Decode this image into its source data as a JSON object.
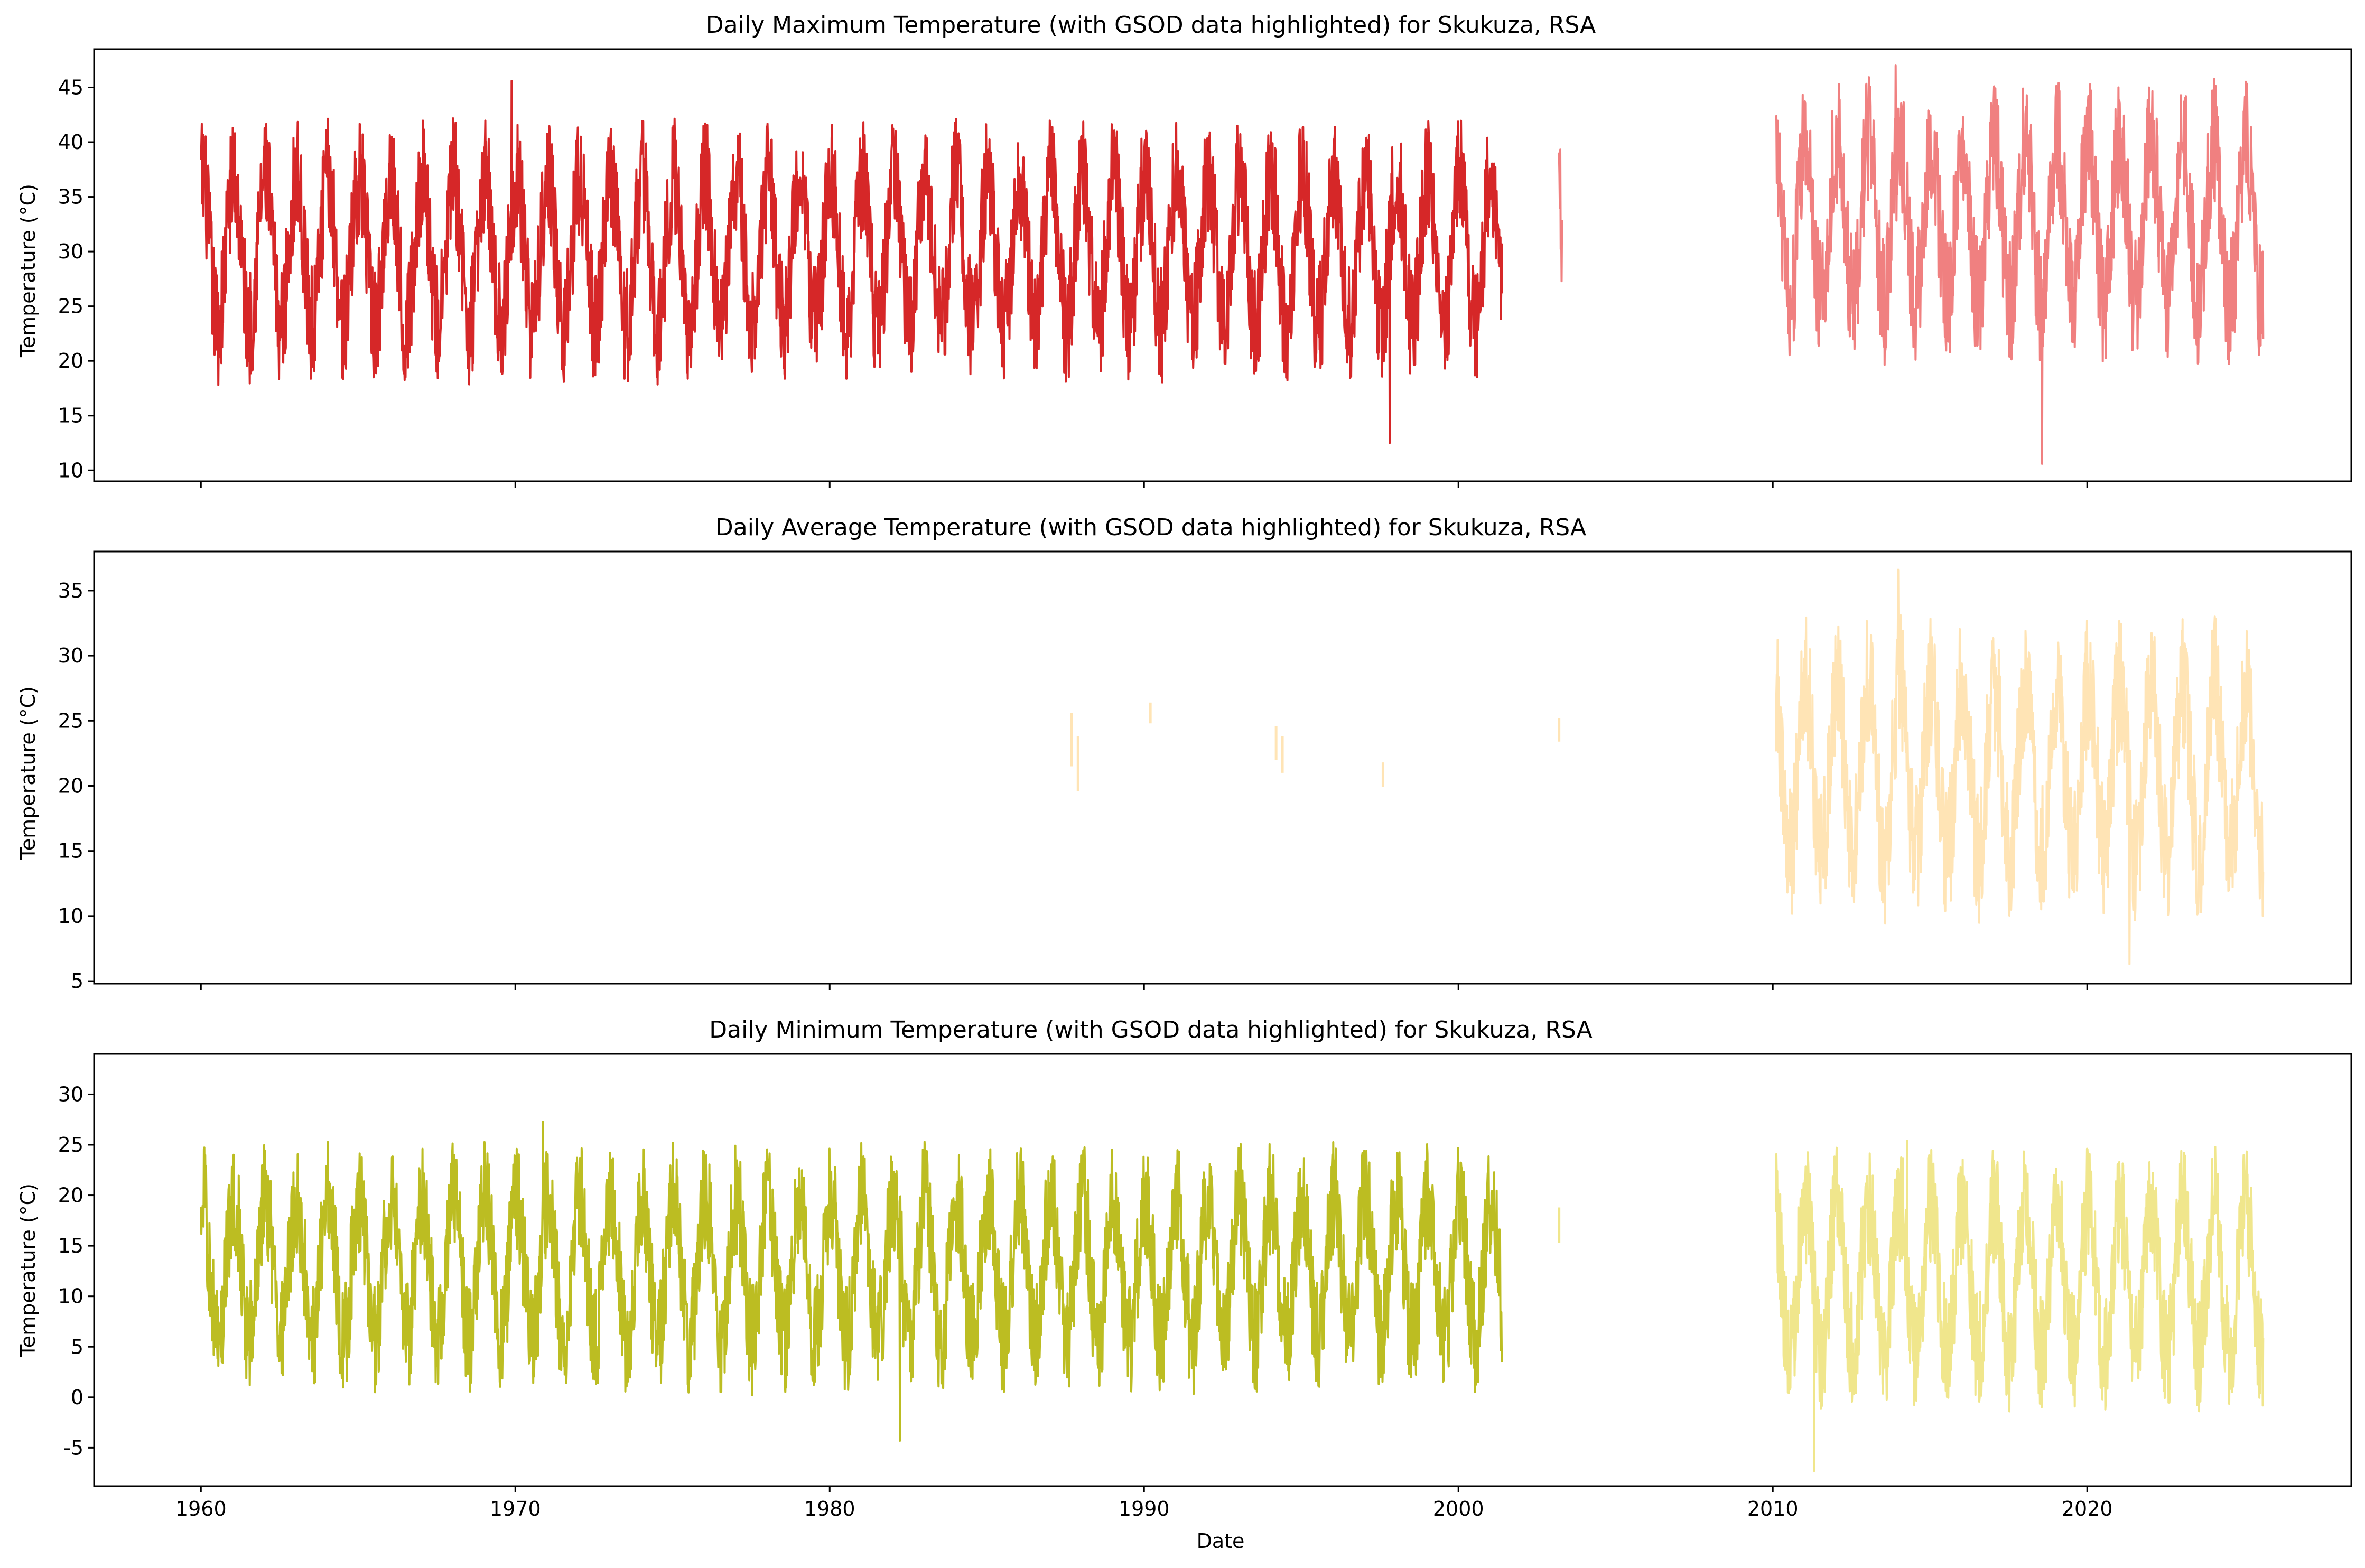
{
  "figure": {
    "xlabel": "Date"
  },
  "chart_data": [
    {
      "type": "line",
      "title": "Daily Maximum Temperature (with GSOD data highlighted) for Skukuza, RSA",
      "xlabel": "",
      "ylabel": "Temperature (°C)",
      "xlim": [
        1956.6,
        2028.4
      ],
      "ylim": [
        9,
        48.5
      ],
      "yticks": [
        10,
        15,
        20,
        25,
        30,
        35,
        40,
        45
      ],
      "xticks": [
        1960,
        1970,
        1980,
        1990,
        2000,
        2010,
        2020
      ],
      "xtick_labels_visible": false,
      "grid": false,
      "series": [
        {
          "color": "#d62728",
          "segments": [
            [
              1960.0,
              2001.4
            ]
          ],
          "min": 12.5,
          "max": 45.6,
          "daily_high_mean": 39.5,
          "daily_low_mean": 20.5
        },
        {
          "color": "#f08080",
          "segments": [
            [
              2003.2,
              2003.3
            ],
            [
              2010.1,
              2025.6
            ]
          ],
          "min": 10.6,
          "max": 47.0,
          "daily_high_mean": 43.0,
          "daily_low_mean": 22.5
        }
      ]
    },
    {
      "type": "line",
      "title": "Daily Average Temperature (with GSOD data highlighted) for Skukuza, RSA",
      "xlabel": "",
      "ylabel": "Temperature (°C)",
      "xlim": [
        1956.6,
        2028.4
      ],
      "ylim": [
        4.8,
        38
      ],
      "yticks": [
        5,
        10,
        15,
        20,
        25,
        30,
        35
      ],
      "xticks": [
        1960,
        1970,
        1980,
        1990,
        2000,
        2010,
        2020
      ],
      "xtick_labels_visible": false,
      "grid": false,
      "series": [
        {
          "color": "#ffe4b5",
          "fragments": [
            {
              "x": 1987.7,
              "y": [
                21.5,
                25.6
              ]
            },
            {
              "x": 1987.9,
              "y": [
                19.6,
                23.8
              ]
            },
            {
              "x": 1990.2,
              "y": [
                24.8,
                26.4
              ]
            },
            {
              "x": 1994.2,
              "y": [
                22.0,
                24.6
              ]
            },
            {
              "x": 1994.4,
              "y": [
                21.0,
                23.8
              ]
            },
            {
              "x": 1997.6,
              "y": [
                19.9,
                21.8
              ]
            },
            {
              "x": 2003.2,
              "y": [
                23.4,
                25.2
              ]
            }
          ],
          "segments": [
            [
              2010.1,
              2025.6
            ]
          ],
          "min": 6.3,
          "max": 36.6,
          "daily_high_mean": 30.5,
          "daily_low_mean": 12.0
        }
      ]
    },
    {
      "type": "line",
      "title": "Daily Minimum Temperature (with GSOD data highlighted) for Skukuza, RSA",
      "xlabel": "Date",
      "ylabel": "Temperature (°C)",
      "xlim": [
        1956.6,
        2028.4
      ],
      "ylim": [
        -8.8,
        34
      ],
      "yticks": [
        -5,
        0,
        5,
        10,
        15,
        20,
        25,
        30
      ],
      "xticks": [
        1960,
        1970,
        1980,
        1990,
        2000,
        2010,
        2020
      ],
      "xtick_labels_visible": true,
      "grid": false,
      "series": [
        {
          "color": "#bcbd22",
          "segments": [
            [
              1960.0,
              2001.4
            ]
          ],
          "min": -4.3,
          "max": 27.3,
          "daily_high_mean": 22.5,
          "daily_low_mean": 3.0
        },
        {
          "color": "#f0e68c",
          "fragments": [
            {
              "x": 2003.2,
              "y": [
                15.3,
                18.8
              ]
            }
          ],
          "segments": [
            [
              2010.1,
              2025.6
            ]
          ],
          "min": -7.3,
          "max": 25.4,
          "daily_high_mean": 22.0,
          "daily_low_mean": 1.5
        }
      ]
    }
  ]
}
